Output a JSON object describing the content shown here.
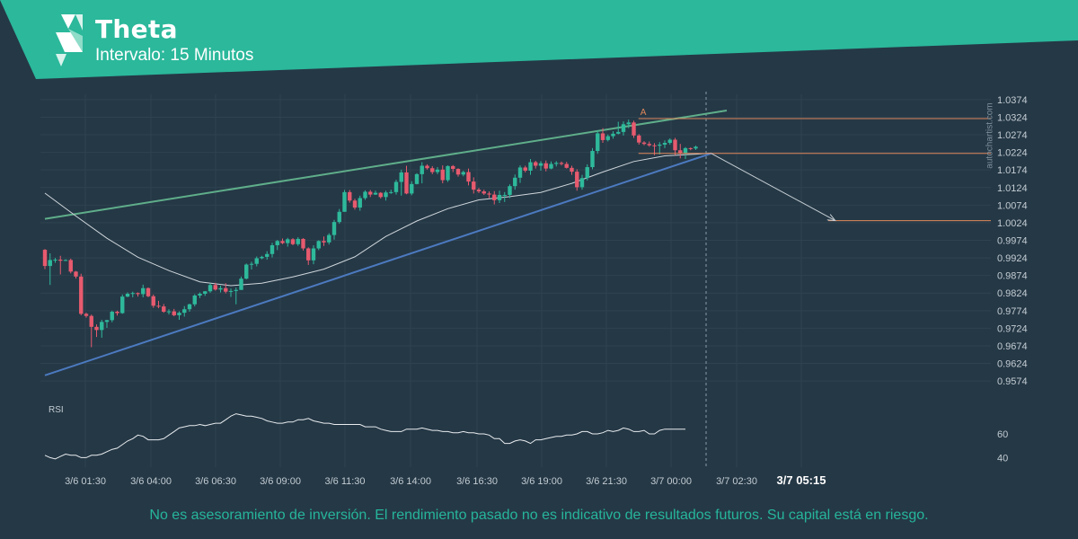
{
  "header": {
    "title": "Theta",
    "subtitle": "Intervalo: 15 Minutos",
    "logo_icon": "autochartist-logo-icon",
    "accent_color": "#2bb89b"
  },
  "watermark": "autochartist.com",
  "footer": {
    "disclaimer": "No es asesoramiento de inversión. El rendimiento pasado no es indicativo de resultados futuros. Su capital está en riesgo."
  },
  "colors": {
    "background": "#253846",
    "bull": "#2eb99b",
    "bear": "#e75a6e",
    "upper_line": "#5fae8a",
    "lower_line": "#4c7ac0",
    "moving_average": "#cfd6db",
    "level": "#e0885a",
    "grid": "#2e4250",
    "axis_text": "#c3ccd2"
  },
  "chart_data": [
    {
      "type": "candlestick",
      "x_tick_labels": [
        "3/6 01:30",
        "3/6 04:00",
        "3/6 06:30",
        "3/6 09:00",
        "3/6 11:30",
        "3/6 14:00",
        "3/6 16:30",
        "3/6 19:00",
        "3/6 21:30",
        "3/7 00:00",
        "3/7 02:30",
        "3/7 05:15"
      ],
      "highlighted_x_label": "3/7 05:15",
      "y_tick_labels": [
        "1.0374",
        "1.0324",
        "1.0274",
        "1.0224",
        "1.0174",
        "1.0124",
        "1.0074",
        "1.0024",
        "0.9974",
        "0.9924",
        "0.9874",
        "0.9824",
        "0.9774",
        "0.9724",
        "0.9674",
        "0.9624",
        "0.9574"
      ],
      "ylim": [
        0.9559,
        1.0389
      ],
      "grid": true,
      "candles": [
        [
          0.9947,
          0.9949,
          0.9892,
          0.9901
        ],
        [
          0.9901,
          0.9937,
          0.9847,
          0.9918
        ],
        [
          0.9918,
          0.9924,
          0.991,
          0.9919
        ],
        [
          0.9919,
          0.993,
          0.9877,
          0.9916
        ],
        [
          0.9916,
          0.992,
          0.9915,
          0.9918
        ],
        [
          0.9918,
          0.9922,
          0.988,
          0.9885
        ],
        [
          0.9885,
          0.9887,
          0.9865,
          0.9871
        ],
        [
          0.9871,
          0.9879,
          0.9761,
          0.9765
        ],
        [
          0.9765,
          0.9768,
          0.9754,
          0.9759
        ],
        [
          0.9759,
          0.9763,
          0.967,
          0.9728
        ],
        [
          0.9728,
          0.9735,
          0.9699,
          0.9719
        ],
        [
          0.9719,
          0.9748,
          0.9697,
          0.9742
        ],
        [
          0.9742,
          0.9748,
          0.9725,
          0.9747
        ],
        [
          0.9747,
          0.9774,
          0.9741,
          0.9771
        ],
        [
          0.9771,
          0.9774,
          0.976,
          0.9767
        ],
        [
          0.9767,
          0.982,
          0.9765,
          0.9814
        ],
        [
          0.9814,
          0.9826,
          0.9812,
          0.9822
        ],
        [
          0.9822,
          0.9828,
          0.9812,
          0.9824
        ],
        [
          0.9824,
          0.9826,
          0.9814,
          0.9821
        ],
        [
          0.9821,
          0.9848,
          0.9812,
          0.9838
        ],
        [
          0.9838,
          0.984,
          0.9812,
          0.9815
        ],
        [
          0.9815,
          0.982,
          0.9782,
          0.9788
        ],
        [
          0.9788,
          0.9802,
          0.9781,
          0.9786
        ],
        [
          0.9786,
          0.9793,
          0.9768,
          0.9771
        ],
        [
          0.9771,
          0.9778,
          0.9763,
          0.9772
        ],
        [
          0.9772,
          0.9779,
          0.9758,
          0.9761
        ],
        [
          0.9761,
          0.9772,
          0.9748,
          0.9768
        ],
        [
          0.9768,
          0.9787,
          0.9757,
          0.9778
        ],
        [
          0.9778,
          0.9794,
          0.9771,
          0.9792
        ],
        [
          0.9792,
          0.9821,
          0.9786,
          0.9817
        ],
        [
          0.9817,
          0.9826,
          0.981,
          0.9822
        ],
        [
          0.9822,
          0.983,
          0.9816,
          0.9829
        ],
        [
          0.9829,
          0.9852,
          0.9825,
          0.9847
        ],
        [
          0.9847,
          0.9853,
          0.9831,
          0.9834
        ],
        [
          0.9834,
          0.9845,
          0.9826,
          0.9838
        ],
        [
          0.9838,
          0.9852,
          0.9823,
          0.9828
        ],
        [
          0.9828,
          0.9837,
          0.9813,
          0.983
        ],
        [
          0.983,
          0.984,
          0.9792,
          0.9833
        ],
        [
          0.9833,
          0.9871,
          0.9833,
          0.9865
        ],
        [
          0.9865,
          0.9908,
          0.9863,
          0.9905
        ],
        [
          0.9905,
          0.9913,
          0.9891,
          0.9907
        ],
        [
          0.9907,
          0.9928,
          0.99,
          0.9923
        ],
        [
          0.9923,
          0.993,
          0.992,
          0.9927
        ],
        [
          0.9927,
          0.9943,
          0.9919,
          0.9935
        ],
        [
          0.9935,
          0.9967,
          0.9925,
          0.996
        ],
        [
          0.996,
          0.9975,
          0.9946,
          0.9972
        ],
        [
          0.9972,
          0.9979,
          0.9963,
          0.9966
        ],
        [
          0.9966,
          0.9981,
          0.9956,
          0.9977
        ],
        [
          0.9977,
          0.998,
          0.996,
          0.9963
        ],
        [
          0.9963,
          0.9983,
          0.9958,
          0.9978
        ],
        [
          0.9978,
          0.998,
          0.9945,
          0.9951
        ],
        [
          0.9951,
          0.9954,
          0.9904,
          0.9917
        ],
        [
          0.9917,
          0.996,
          0.9906,
          0.9951
        ],
        [
          0.9951,
          0.9974,
          0.9946,
          0.9972
        ],
        [
          0.9972,
          0.9985,
          0.9958,
          0.9968
        ],
        [
          0.9968,
          0.9994,
          0.9962,
          0.9989
        ],
        [
          0.9989,
          1.0032,
          0.9976,
          1.0026
        ],
        [
          1.0026,
          1.0063,
          1.0021,
          1.0055
        ],
        [
          1.0055,
          1.0117,
          1.0055,
          1.0111
        ],
        [
          1.0111,
          1.0117,
          1.0081,
          1.0087
        ],
        [
          1.0087,
          1.0092,
          1.0061,
          1.0067
        ],
        [
          1.0067,
          1.0101,
          1.0058,
          1.0094
        ],
        [
          1.0094,
          1.0116,
          1.0089,
          1.0112
        ],
        [
          1.0112,
          1.0117,
          1.0097,
          1.0104
        ],
        [
          1.0104,
          1.0115,
          1.0103,
          1.0109
        ],
        [
          1.0109,
          1.0111,
          1.0093,
          1.0097
        ],
        [
          1.0097,
          1.0115,
          1.0087,
          1.011
        ],
        [
          1.011,
          1.0118,
          1.0106,
          1.0111
        ],
        [
          1.0111,
          1.0146,
          1.0104,
          1.014
        ],
        [
          1.014,
          1.0175,
          1.0101,
          1.0167
        ],
        [
          1.0167,
          1.0186,
          1.0105,
          1.0107
        ],
        [
          1.0107,
          1.0142,
          1.0102,
          1.0134
        ],
        [
          1.0134,
          1.0165,
          1.0133,
          1.0162
        ],
        [
          1.0162,
          1.0196,
          1.0136,
          1.0186
        ],
        [
          1.0186,
          1.019,
          1.0175,
          1.0179
        ],
        [
          1.0179,
          1.0185,
          1.0162,
          1.0168
        ],
        [
          1.0168,
          1.0182,
          1.0162,
          1.0175
        ],
        [
          1.0175,
          1.0187,
          1.0136,
          1.0145
        ],
        [
          1.0145,
          1.0187,
          1.014,
          1.0185
        ],
        [
          1.0185,
          1.0188,
          1.0168,
          1.0177
        ],
        [
          1.0177,
          1.0179,
          1.0155,
          1.0161
        ],
        [
          1.0161,
          1.0172,
          1.0156,
          1.0168
        ],
        [
          1.0168,
          1.0178,
          1.013,
          1.0141
        ],
        [
          1.0141,
          1.0153,
          1.0107,
          1.0118
        ],
        [
          1.0118,
          1.0123,
          1.0108,
          1.0113
        ],
        [
          1.0113,
          1.0118,
          1.0103,
          1.0107
        ],
        [
          1.0107,
          1.0113,
          1.0094,
          1.0104
        ],
        [
          1.0104,
          1.0114,
          1.0076,
          1.0088
        ],
        [
          1.0088,
          1.0115,
          1.008,
          1.0103
        ],
        [
          1.0103,
          1.0111,
          1.0083,
          1.0103
        ],
        [
          1.0103,
          1.0133,
          1.0094,
          1.0128
        ],
        [
          1.0128,
          1.0161,
          1.0118,
          1.0152
        ],
        [
          1.0152,
          1.0187,
          1.0137,
          1.0181
        ],
        [
          1.0181,
          1.0186,
          1.0167,
          1.0172
        ],
        [
          1.0172,
          1.0205,
          1.016,
          1.0196
        ],
        [
          1.0196,
          1.02,
          1.0178,
          1.0186
        ],
        [
          1.0186,
          1.0199,
          1.0172,
          1.0193
        ],
        [
          1.0193,
          1.0201,
          1.017,
          1.0178
        ],
        [
          1.0178,
          1.0198,
          1.0176,
          1.0191
        ],
        [
          1.0191,
          1.0199,
          1.0184,
          1.0194
        ],
        [
          1.0194,
          1.0198,
          1.0187,
          1.0191
        ],
        [
          1.0191,
          1.0197,
          1.0178,
          1.018
        ],
        [
          1.018,
          1.0186,
          1.016,
          1.0169
        ],
        [
          1.0169,
          1.0176,
          1.0115,
          1.0125
        ],
        [
          1.0125,
          1.016,
          1.0118,
          1.0151
        ],
        [
          1.0151,
          1.019,
          1.0144,
          1.0182
        ],
        [
          1.0182,
          1.0236,
          1.0176,
          1.0228
        ],
        [
          1.0228,
          1.0286,
          1.022,
          1.0278
        ],
        [
          1.0278,
          1.0293,
          1.0251,
          1.0259
        ],
        [
          1.0259,
          1.0275,
          1.0255,
          1.027
        ],
        [
          1.027,
          1.0284,
          1.0263,
          1.0277
        ],
        [
          1.0277,
          1.0311,
          1.0275,
          1.0282
        ],
        [
          1.0282,
          1.0312,
          1.0272,
          1.0304
        ],
        [
          1.0304,
          1.0317,
          1.0293,
          1.0309
        ],
        [
          1.0309,
          1.0314,
          1.0265,
          1.0272
        ],
        [
          1.0272,
          1.0276,
          1.0246,
          1.0252
        ],
        [
          1.0252,
          1.0256,
          1.0244,
          1.0248
        ],
        [
          1.0248,
          1.0255,
          1.024,
          1.0244
        ],
        [
          1.0244,
          1.025,
          1.0216,
          1.0243
        ],
        [
          1.0243,
          1.0253,
          1.0218,
          1.0246
        ],
        [
          1.0246,
          1.0258,
          1.0236,
          1.0251
        ],
        [
          1.0251,
          1.0264,
          1.0246,
          1.026
        ],
        [
          1.026,
          1.0265,
          1.0216,
          1.023
        ],
        [
          1.023,
          1.0248,
          1.0207,
          1.0222
        ],
        [
          1.0222,
          1.0239,
          1.0205,
          1.0236
        ],
        [
          1.0236,
          1.0238,
          1.023,
          1.0235
        ],
        [
          1.0235,
          1.0243,
          1.0231,
          1.024
        ]
      ],
      "moving_average": [
        [
          0,
          1.0108
        ],
        [
          6,
          1.0043
        ],
        [
          12,
          0.998
        ],
        [
          18,
          0.9926
        ],
        [
          24,
          0.9888
        ],
        [
          30,
          0.9856
        ],
        [
          36,
          0.9845
        ],
        [
          42,
          0.9852
        ],
        [
          48,
          0.987
        ],
        [
          54,
          0.9892
        ],
        [
          60,
          0.9927
        ],
        [
          66,
          0.9985
        ],
        [
          72,
          1.0029
        ],
        [
          78,
          1.0064
        ],
        [
          84,
          1.0089
        ],
        [
          90,
          1.0098
        ],
        [
          96,
          1.011
        ],
        [
          102,
          1.0136
        ],
        [
          108,
          1.0168
        ],
        [
          114,
          1.0198
        ],
        [
          120,
          1.0214
        ],
        [
          126,
          1.0219
        ],
        [
          129,
          1.0222
        ]
      ],
      "upper_line": [
        [
          0,
          1.0035
        ],
        [
          132,
          1.0343
        ]
      ],
      "lower_line": [
        [
          0,
          0.959
        ],
        [
          129,
          1.0221
        ]
      ],
      "resistance_level": 1.032,
      "support_level": 1.0221,
      "target_level": 1.003,
      "projection_end": [
        153,
        1.003
      ],
      "pattern_point_label": "A",
      "pattern_point_index": 117,
      "current_index": 128
    },
    {
      "type": "line",
      "title": "RSI",
      "y_tick_labels": [
        "60",
        "40"
      ],
      "ylim": [
        32,
        85
      ],
      "values": [
        42,
        40,
        39,
        41,
        43,
        42,
        42,
        40,
        40,
        42,
        42,
        43,
        45,
        47,
        48,
        51,
        54,
        56,
        59,
        58,
        55,
        55,
        55,
        56,
        59,
        62,
        65,
        66,
        67,
        67,
        68,
        67,
        68,
        69,
        69,
        72,
        75,
        77,
        76,
        75,
        75,
        74,
        73,
        71,
        70,
        69,
        69,
        70,
        70,
        72,
        72,
        73,
        71,
        70,
        69,
        69,
        68,
        68,
        68,
        68,
        68,
        68,
        66,
        66,
        66,
        64,
        63,
        62,
        62,
        62,
        64,
        64,
        64,
        65,
        64,
        63,
        63,
        62,
        62,
        61,
        61,
        62,
        61,
        61,
        60,
        60,
        59,
        56,
        56,
        52,
        52,
        54,
        55,
        54,
        52,
        55,
        55,
        56,
        57,
        58,
        58,
        59,
        59,
        60,
        62,
        62,
        60,
        60,
        61,
        63,
        62,
        63,
        65,
        64,
        62,
        62,
        63,
        60,
        60,
        63,
        64,
        64,
        64,
        64,
        64
      ]
    }
  ]
}
